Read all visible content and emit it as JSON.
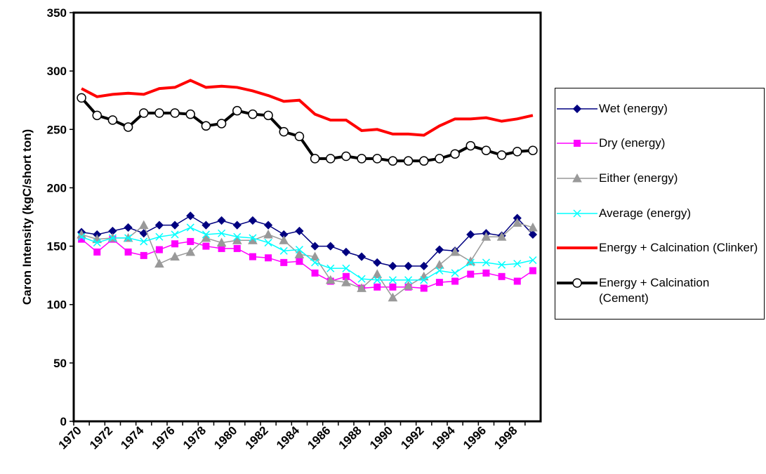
{
  "chart_data": {
    "type": "line",
    "categories": [
      "1970",
      null,
      "1972",
      null,
      "1974",
      null,
      "1976",
      null,
      "1978",
      null,
      "1980",
      null,
      "1982",
      null,
      "1984",
      null,
      "1986",
      null,
      "1988",
      null,
      "1990",
      null,
      "1992",
      null,
      "1994",
      null,
      "1996",
      null,
      "1998",
      null
    ],
    "y_label": "Caron Intensity (kgC/short ton)",
    "ylim": [
      0,
      350
    ],
    "yticks": [
      0,
      50,
      100,
      150,
      200,
      250,
      300,
      350
    ],
    "series": [
      {
        "name": "Wet (energy)",
        "color": "#000080",
        "marker": "diamond",
        "values": [
          162,
          160,
          163,
          166,
          161,
          168,
          168,
          176,
          168,
          172,
          168,
          172,
          168,
          160,
          163,
          150,
          150,
          145,
          141,
          136,
          133,
          133,
          133,
          147,
          146,
          160,
          161,
          159,
          174,
          160
        ]
      },
      {
        "name": "Dry (energy)",
        "color": "#ff00ff",
        "marker": "square",
        "values": [
          156,
          145,
          156,
          145,
          142,
          147,
          152,
          154,
          150,
          148,
          148,
          141,
          140,
          136,
          137,
          127,
          120,
          124,
          114,
          115,
          115,
          115,
          114,
          119,
          120,
          126,
          127,
          124,
          120,
          129
        ]
      },
      {
        "name": "Either (energy)",
        "color": "#999999",
        "marker": "triangle",
        "values": [
          160,
          156,
          157,
          157,
          168,
          135,
          141,
          145,
          157,
          153,
          155,
          155,
          160,
          155,
          143,
          141,
          121,
          119,
          114,
          126,
          106,
          116,
          124,
          134,
          145,
          137,
          158,
          158,
          170,
          166
        ]
      },
      {
        "name": "Average (energy)",
        "color": "#00ffff",
        "marker": "x",
        "values": [
          158,
          153,
          157,
          157,
          154,
          158,
          160,
          166,
          160,
          161,
          158,
          157,
          153,
          146,
          147,
          136,
          131,
          131,
          122,
          121,
          121,
          121,
          121,
          129,
          127,
          136,
          136,
          134,
          135,
          138
        ]
      },
      {
        "name": "Energy + Calcination (Clinker)",
        "color": "#ff0000",
        "marker": "none",
        "values": [
          285,
          278,
          280,
          281,
          280,
          285,
          286,
          292,
          286,
          287,
          286,
          283,
          279,
          274,
          275,
          263,
          258,
          258,
          249,
          250,
          246,
          246,
          245,
          253,
          259,
          259,
          260,
          257,
          259,
          262
        ]
      },
      {
        "name": "Energy + Calcination (Cement)",
        "color": "#000000",
        "marker": "circle",
        "values": [
          277,
          262,
          258,
          252,
          264,
          264,
          264,
          263,
          253,
          255,
          266,
          263,
          262,
          248,
          244,
          225,
          225,
          227,
          225,
          225,
          223,
          223,
          223,
          225,
          229,
          236,
          232,
          228,
          231,
          232
        ]
      }
    ]
  }
}
